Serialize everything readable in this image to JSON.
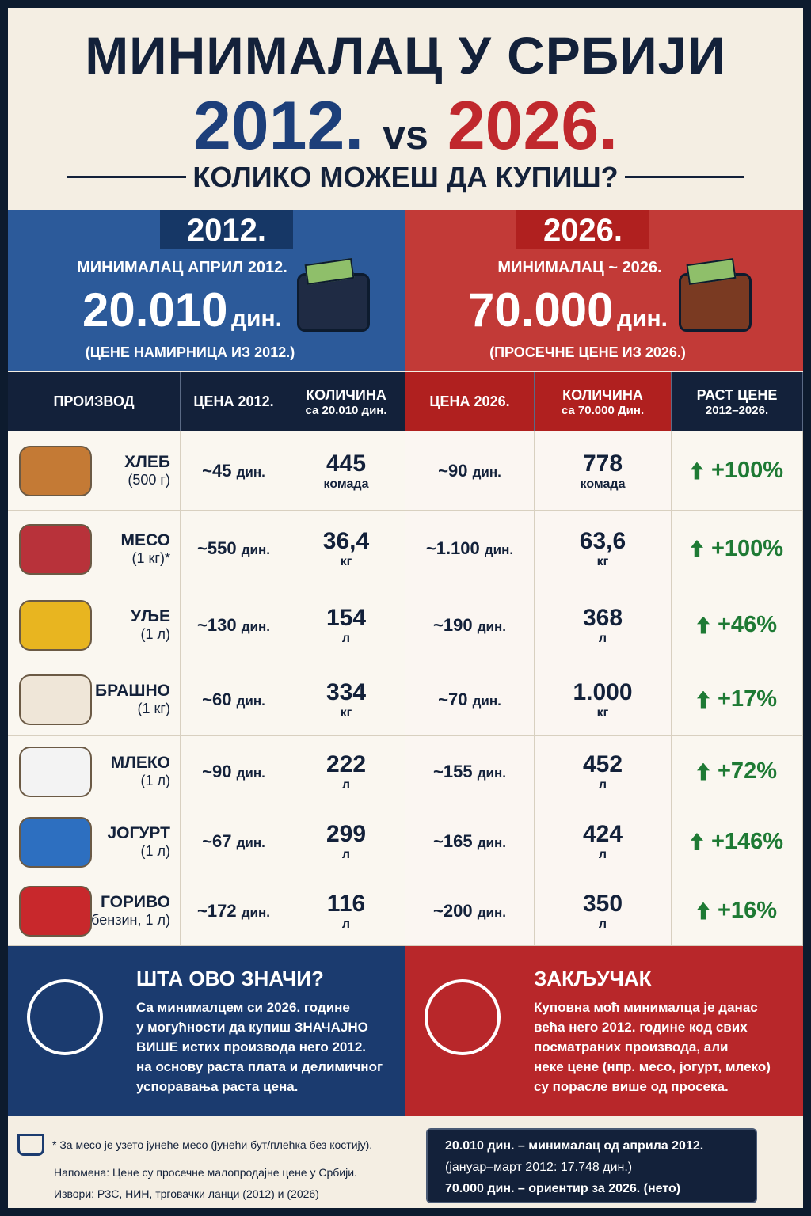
{
  "header": {
    "title": "МИНИМАЛАЦ У СРБИЈИ",
    "year_left": "2012.",
    "vs": "vs",
    "year_right": "2026.",
    "subtitle": "КОЛИКО МОЖЕШ ДА КУПИШ?"
  },
  "panels": {
    "left": {
      "badge": "2012.",
      "label": "МИНИМАЛАЦ АПРИЛ 2012.",
      "amount": "20.010",
      "unit": "дин.",
      "note": "(ЦЕНЕ НАМИРНИЦА ИЗ 2012.)"
    },
    "right": {
      "badge": "2026.",
      "label": "МИНИМАЛАЦ ~ 2026.",
      "amount": "70.000",
      "unit": "дин.",
      "note": "(ПРОСЕЧНЕ ЦЕНЕ ИЗ 2026.)"
    }
  },
  "table": {
    "headers": [
      [
        "ПРОИЗВОД"
      ],
      [
        "ЦЕНА 2012."
      ],
      [
        "КОЛИЧИНА",
        "са 20.010 дин."
      ],
      [
        "ЦЕНА 2026."
      ],
      [
        "КОЛИЧИНА",
        "са 70.000 Дин."
      ],
      [
        "РАСТ ЦЕНЕ",
        "2012–2026."
      ]
    ],
    "rows": [
      {
        "name": "ХЛЕБ",
        "detail": "(500 г)",
        "price_2012": "~45",
        "price_unit_2012": "дин.",
        "qty_2012": "445",
        "qty_unit_2012": "комада",
        "price_2026": "~90",
        "price_unit_2026": "дин.",
        "qty_2026": "778",
        "qty_unit_2026": "комада",
        "growth": "+100%"
      },
      {
        "name": "МЕСО",
        "detail": "(1 кг)*",
        "price_2012": "~550",
        "price_unit_2012": "дин.",
        "qty_2012": "36,4",
        "qty_unit_2012": "кг",
        "price_2026": "~1.100",
        "price_unit_2026": "дин.",
        "qty_2026": "63,6",
        "qty_unit_2026": "кг",
        "growth": "+100%"
      },
      {
        "name": "УЉЕ",
        "detail": "(1 л)",
        "price_2012": "~130",
        "price_unit_2012": "дин.",
        "qty_2012": "154",
        "qty_unit_2012": "л",
        "price_2026": "~190",
        "price_unit_2026": "дин.",
        "qty_2026": "368",
        "qty_unit_2026": "л",
        "growth": "+46%"
      },
      {
        "name": "БРАШНО",
        "detail": "(1 кг)",
        "price_2012": "~60",
        "price_unit_2012": "дин.",
        "qty_2012": "334",
        "qty_unit_2012": "кг",
        "price_2026": "~70",
        "price_unit_2026": "дин.",
        "qty_2026": "1.000",
        "qty_unit_2026": "кг",
        "growth": "+17%"
      },
      {
        "name": "МЛЕКО",
        "detail": "(1 л)",
        "price_2012": "~90",
        "price_unit_2012": "дин.",
        "qty_2012": "222",
        "qty_unit_2012": "л",
        "price_2026": "~155",
        "price_unit_2026": "дин.",
        "qty_2026": "452",
        "qty_unit_2026": "л",
        "growth": "+72%"
      },
      {
        "name": "ЈОГУРТ",
        "detail": "(1 л)",
        "price_2012": "~67",
        "price_unit_2012": "дин.",
        "qty_2012": "299",
        "qty_unit_2012": "л",
        "price_2026": "~165",
        "price_unit_2026": "дин.",
        "qty_2026": "424",
        "qty_unit_2026": "л",
        "growth": "+146%"
      },
      {
        "name": "ГОРИВО",
        "detail": "(бензин, 1 л)",
        "price_2012": "~172",
        "price_unit_2012": "дин.",
        "qty_2012": "116",
        "qty_unit_2012": "л",
        "price_2026": "~200",
        "price_unit_2026": "дин.",
        "qty_2026": "350",
        "qty_unit_2026": "л",
        "growth": "+16%"
      }
    ]
  },
  "summary": {
    "left": {
      "title": "ШТА ОВО ЗНАЧИ?",
      "lines": [
        "Са минималцем си 2026. године",
        "у могућности да купиш ЗНАЧАЈНО",
        "ВИШЕ истих производа него 2012.",
        "на основу раста плата и делимичног",
        "успоравања раста цена."
      ]
    },
    "right": {
      "title": "ЗАКЉУЧАК",
      "lines": [
        "Куповна моћ минималца је данас",
        "већа него 2012. године код свих",
        "посматраних производа, али",
        "неке цене (нпр. месо, јогурт, млеко)",
        "су порасле више од просека."
      ]
    }
  },
  "footer": {
    "notes": [
      "* За месо је узето јунеће месо (јунећи бут/плећка без костију).",
      "Напомена: Цене су просечне малопродајне цене у Србији.",
      "Извори: РЗС, НИН, трговачки ланци (2012) и (2026)"
    ],
    "box": [
      "20.010 дин. – минималац од априла 2012.",
      "(јануар–март 2012: 17.748 дин.)",
      "70.000 дин. – ориентир за 2026. (нето)"
    ]
  }
}
